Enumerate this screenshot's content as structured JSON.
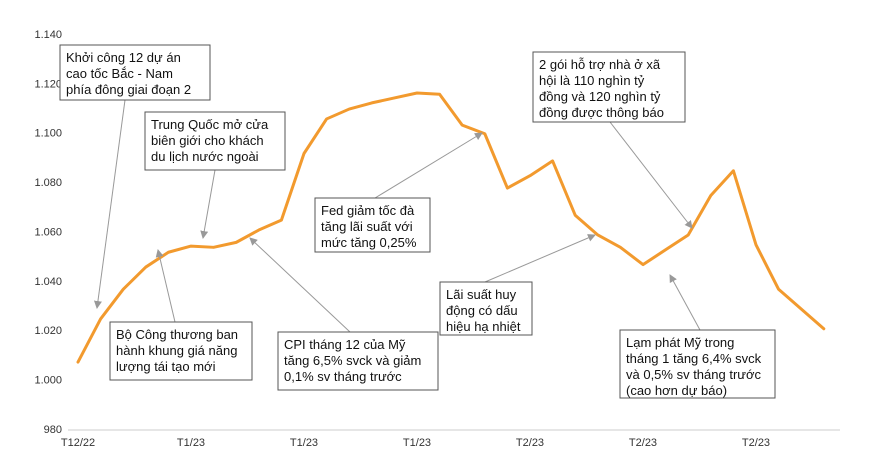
{
  "chart_data": {
    "type": "line",
    "categories": [
      "T12/22",
      null,
      null,
      null,
      null,
      "T1/23",
      null,
      null,
      null,
      null,
      "T1/23",
      null,
      null,
      null,
      null,
      "T1/23",
      null,
      null,
      null,
      null,
      "T2/23",
      null,
      null,
      null,
      null,
      "T2/23",
      null,
      null,
      null,
      null,
      "T2/23",
      null,
      null,
      null
    ],
    "series": [
      {
        "color": "#f29a2e",
        "values": [
          1007.5,
          1025,
          1037,
          1046,
          1052,
          1054.5,
          1054,
          1056,
          1061,
          1065,
          1092,
          1106,
          1110,
          1112.5,
          1114.5,
          1116.5,
          1116,
          1103.5,
          1100,
          1078,
          1083,
          1089,
          1067,
          1059,
          1054,
          1047,
          1053,
          1059,
          1075,
          1085,
          1055,
          1037,
          1029,
          1021
        ]
      }
    ],
    "ylim": [
      980,
      1140
    ],
    "yticks": [
      980,
      {
        "value": 1000,
        "label": "1.000"
      },
      {
        "value": 1020,
        "label": "1.020"
      },
      {
        "value": 1040,
        "label": "1.040"
      },
      {
        "value": 1060,
        "label": "1.060"
      },
      {
        "value": 1080,
        "label": "1.080"
      },
      {
        "value": 1100,
        "label": "1.100"
      },
      {
        "value": 1120,
        "label": "1.120"
      },
      {
        "value": 1140,
        "label": "1.140"
      }
    ],
    "annotations": [
      [
        "Khởi công 12 dự án",
        "cao tốc Bắc - Nam",
        "phía đông giai đoạn 2"
      ],
      [
        "Trung Quốc mở cửa",
        "biên giới cho khách",
        "du lịch nước ngoài"
      ],
      [
        "Bộ Công thương ban",
        "hành khung giá năng",
        "lượng tái tạo mới"
      ],
      [
        "CPI tháng 12 của Mỹ",
        "tăng 6,5% svck và giảm",
        "0,1% sv tháng trước"
      ],
      [
        "Fed giảm tốc đà",
        "tăng lãi suất với",
        "mức tăng 0,25%"
      ],
      [
        "Lãi suất huy",
        "động có dấu",
        "hiệu hạ nhiệt"
      ],
      [
        "2 gói hỗ trợ nhà ở xã",
        "hội là 110 nghìn tỷ",
        "đồng và 120 nghìn tỷ",
        "đồng được thông báo"
      ],
      [
        "Lạm phát Mỹ trong",
        "tháng 1 tăng 6,4% svck",
        "và 0,5% sv tháng trước",
        "(cao hơn dự báo)"
      ]
    ]
  }
}
